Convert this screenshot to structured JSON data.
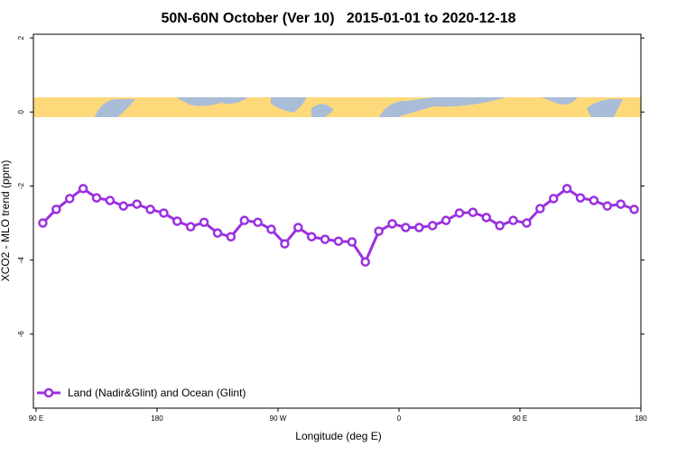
{
  "chart_data": {
    "type": "line",
    "title": "50N-60N October (Ver 10)   2015-01-01 to 2020-12-18",
    "xlabel": "Longitude (deg E)",
    "ylabel": "XCO2 - MLO trend (ppm)",
    "x": [
      95,
      105,
      115,
      125,
      135,
      145,
      155,
      165,
      175,
      185,
      195,
      205,
      215,
      225,
      235,
      245,
      255,
      265,
      275,
      285,
      295,
      305,
      315,
      325,
      335,
      345,
      355,
      365,
      375,
      385,
      395,
      405,
      415,
      425,
      435,
      445,
      455,
      465,
      475,
      485,
      495,
      505,
      515,
      525,
      535
    ],
    "series": [
      {
        "name": "Land (Nadir&Glint) and Ocean (Glint)",
        "color": "#9b30e0",
        "values": [
          -3.0,
          -2.63,
          -2.34,
          -2.07,
          -2.32,
          -2.39,
          -2.54,
          -2.49,
          -2.63,
          -2.73,
          -2.95,
          -3.1,
          -2.98,
          -3.27,
          -3.37,
          -2.93,
          -2.98,
          -3.17,
          -3.56,
          -3.12,
          -3.37,
          -3.44,
          -3.49,
          -3.51,
          -4.05,
          -3.22,
          -3.02,
          -3.12,
          -3.12,
          -3.07,
          -2.93,
          -2.73,
          -2.71,
          -2.85,
          -3.07,
          -2.93,
          -3.0,
          -2.61,
          -2.34,
          -2.07,
          -2.32,
          -2.39,
          -2.54,
          -2.49,
          -2.63
        ]
      }
    ],
    "xlim": [
      88,
      540
    ],
    "xticks": [
      {
        "value": 90,
        "label": "90 E"
      },
      180,
      {
        "value": 270,
        "label": "90 W"
      },
      {
        "value": 360,
        "label": "0"
      },
      {
        "value": 450,
        "label": "90 E"
      },
      {
        "value": 540,
        "label": "180"
      }
    ],
    "ylim": [
      -8.0,
      2.1
    ],
    "yticks": [
      2,
      0,
      -2,
      -4,
      -6
    ],
    "legend": "bottom-left"
  }
}
